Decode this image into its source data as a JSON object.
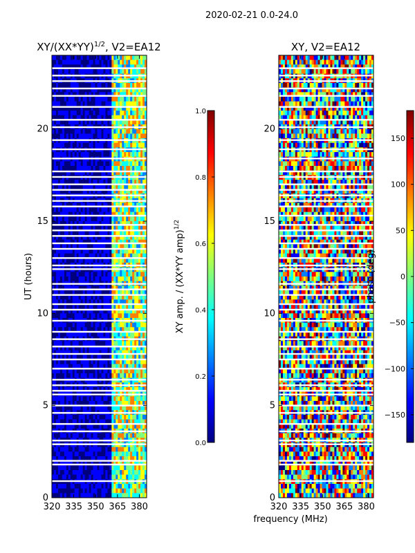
{
  "figure": {
    "suptitle": "2020-02-21 0.0-24.0",
    "xlabel": "frequency (MHz)"
  },
  "colormap": [
    "#00007f",
    "#0000ff",
    "#007fff",
    "#00ffff",
    "#7fff7f",
    "#ffff00",
    "#ff7f00",
    "#ff0000",
    "#7f0000"
  ],
  "chart_data": [
    {
      "type": "heatmap",
      "title_main": "XY/(XX*YY)",
      "title_exp": "1/2",
      "title_rest": ", V2=EA12",
      "ylabel": "UT (hours)",
      "x_range": [
        320,
        385
      ],
      "y_range": [
        0,
        24
      ],
      "xticks": [
        320,
        335,
        350,
        365,
        380
      ],
      "yticks": [
        0,
        5,
        10,
        15,
        20
      ],
      "low_value_below_mhz": 361,
      "colorbar": {
        "label": "XY amp. / (XX*YY amp)",
        "label_exp": "1/2",
        "range": [
          0.0,
          1.0
        ],
        "ticks": [
          "0.0",
          "0.2",
          "0.4",
          "0.6",
          "0.8",
          "1.0"
        ]
      },
      "gap_hours": [
        0.9,
        1.8,
        2.0,
        2.9,
        3.1,
        3.6,
        4.0,
        4.6,
        5.0,
        5.6,
        5.8,
        6.1,
        6.4,
        7.0,
        7.5,
        7.8,
        8.2,
        8.6,
        9.0,
        9.6,
        10.2,
        10.5,
        11.0,
        11.3,
        11.6,
        12.4,
        12.6,
        13.0,
        13.5,
        13.8,
        14.2,
        14.5,
        14.8,
        15.3,
        15.8,
        16.1,
        16.4,
        16.7,
        17.0,
        17.4,
        17.7,
        18.4,
        18.9,
        19.4,
        20.1,
        20.5,
        21.2,
        21.8,
        22.2,
        22.6,
        22.9,
        23.3
      ]
    },
    {
      "type": "heatmap",
      "title": "XY, V2=EA12",
      "x_range": [
        320,
        385
      ],
      "y_range": [
        0,
        24
      ],
      "xticks": [
        320,
        335,
        350,
        365,
        380
      ],
      "yticks": [
        0,
        5,
        10,
        15,
        20
      ],
      "colorbar": {
        "label": "phase (deg)",
        "range": [
          -180,
          180
        ],
        "ticks": [
          "150",
          "100",
          "50",
          "0",
          "−50",
          "−100",
          "−150"
        ]
      },
      "gap_hours": [
        0.9,
        1.8,
        2.0,
        2.9,
        3.1,
        3.6,
        4.0,
        4.6,
        5.0,
        5.6,
        5.8,
        6.1,
        6.4,
        7.0,
        7.5,
        7.8,
        8.2,
        8.6,
        9.0,
        9.6,
        10.2,
        10.5,
        11.0,
        11.3,
        11.6,
        12.4,
        12.6,
        13.0,
        13.5,
        13.8,
        14.2,
        14.5,
        14.8,
        15.3,
        15.8,
        16.1,
        16.4,
        16.7,
        17.0,
        17.4,
        17.7,
        18.4,
        18.9,
        19.4,
        20.1,
        20.5,
        21.2,
        21.8,
        22.2,
        22.6,
        22.9,
        23.3
      ]
    }
  ]
}
